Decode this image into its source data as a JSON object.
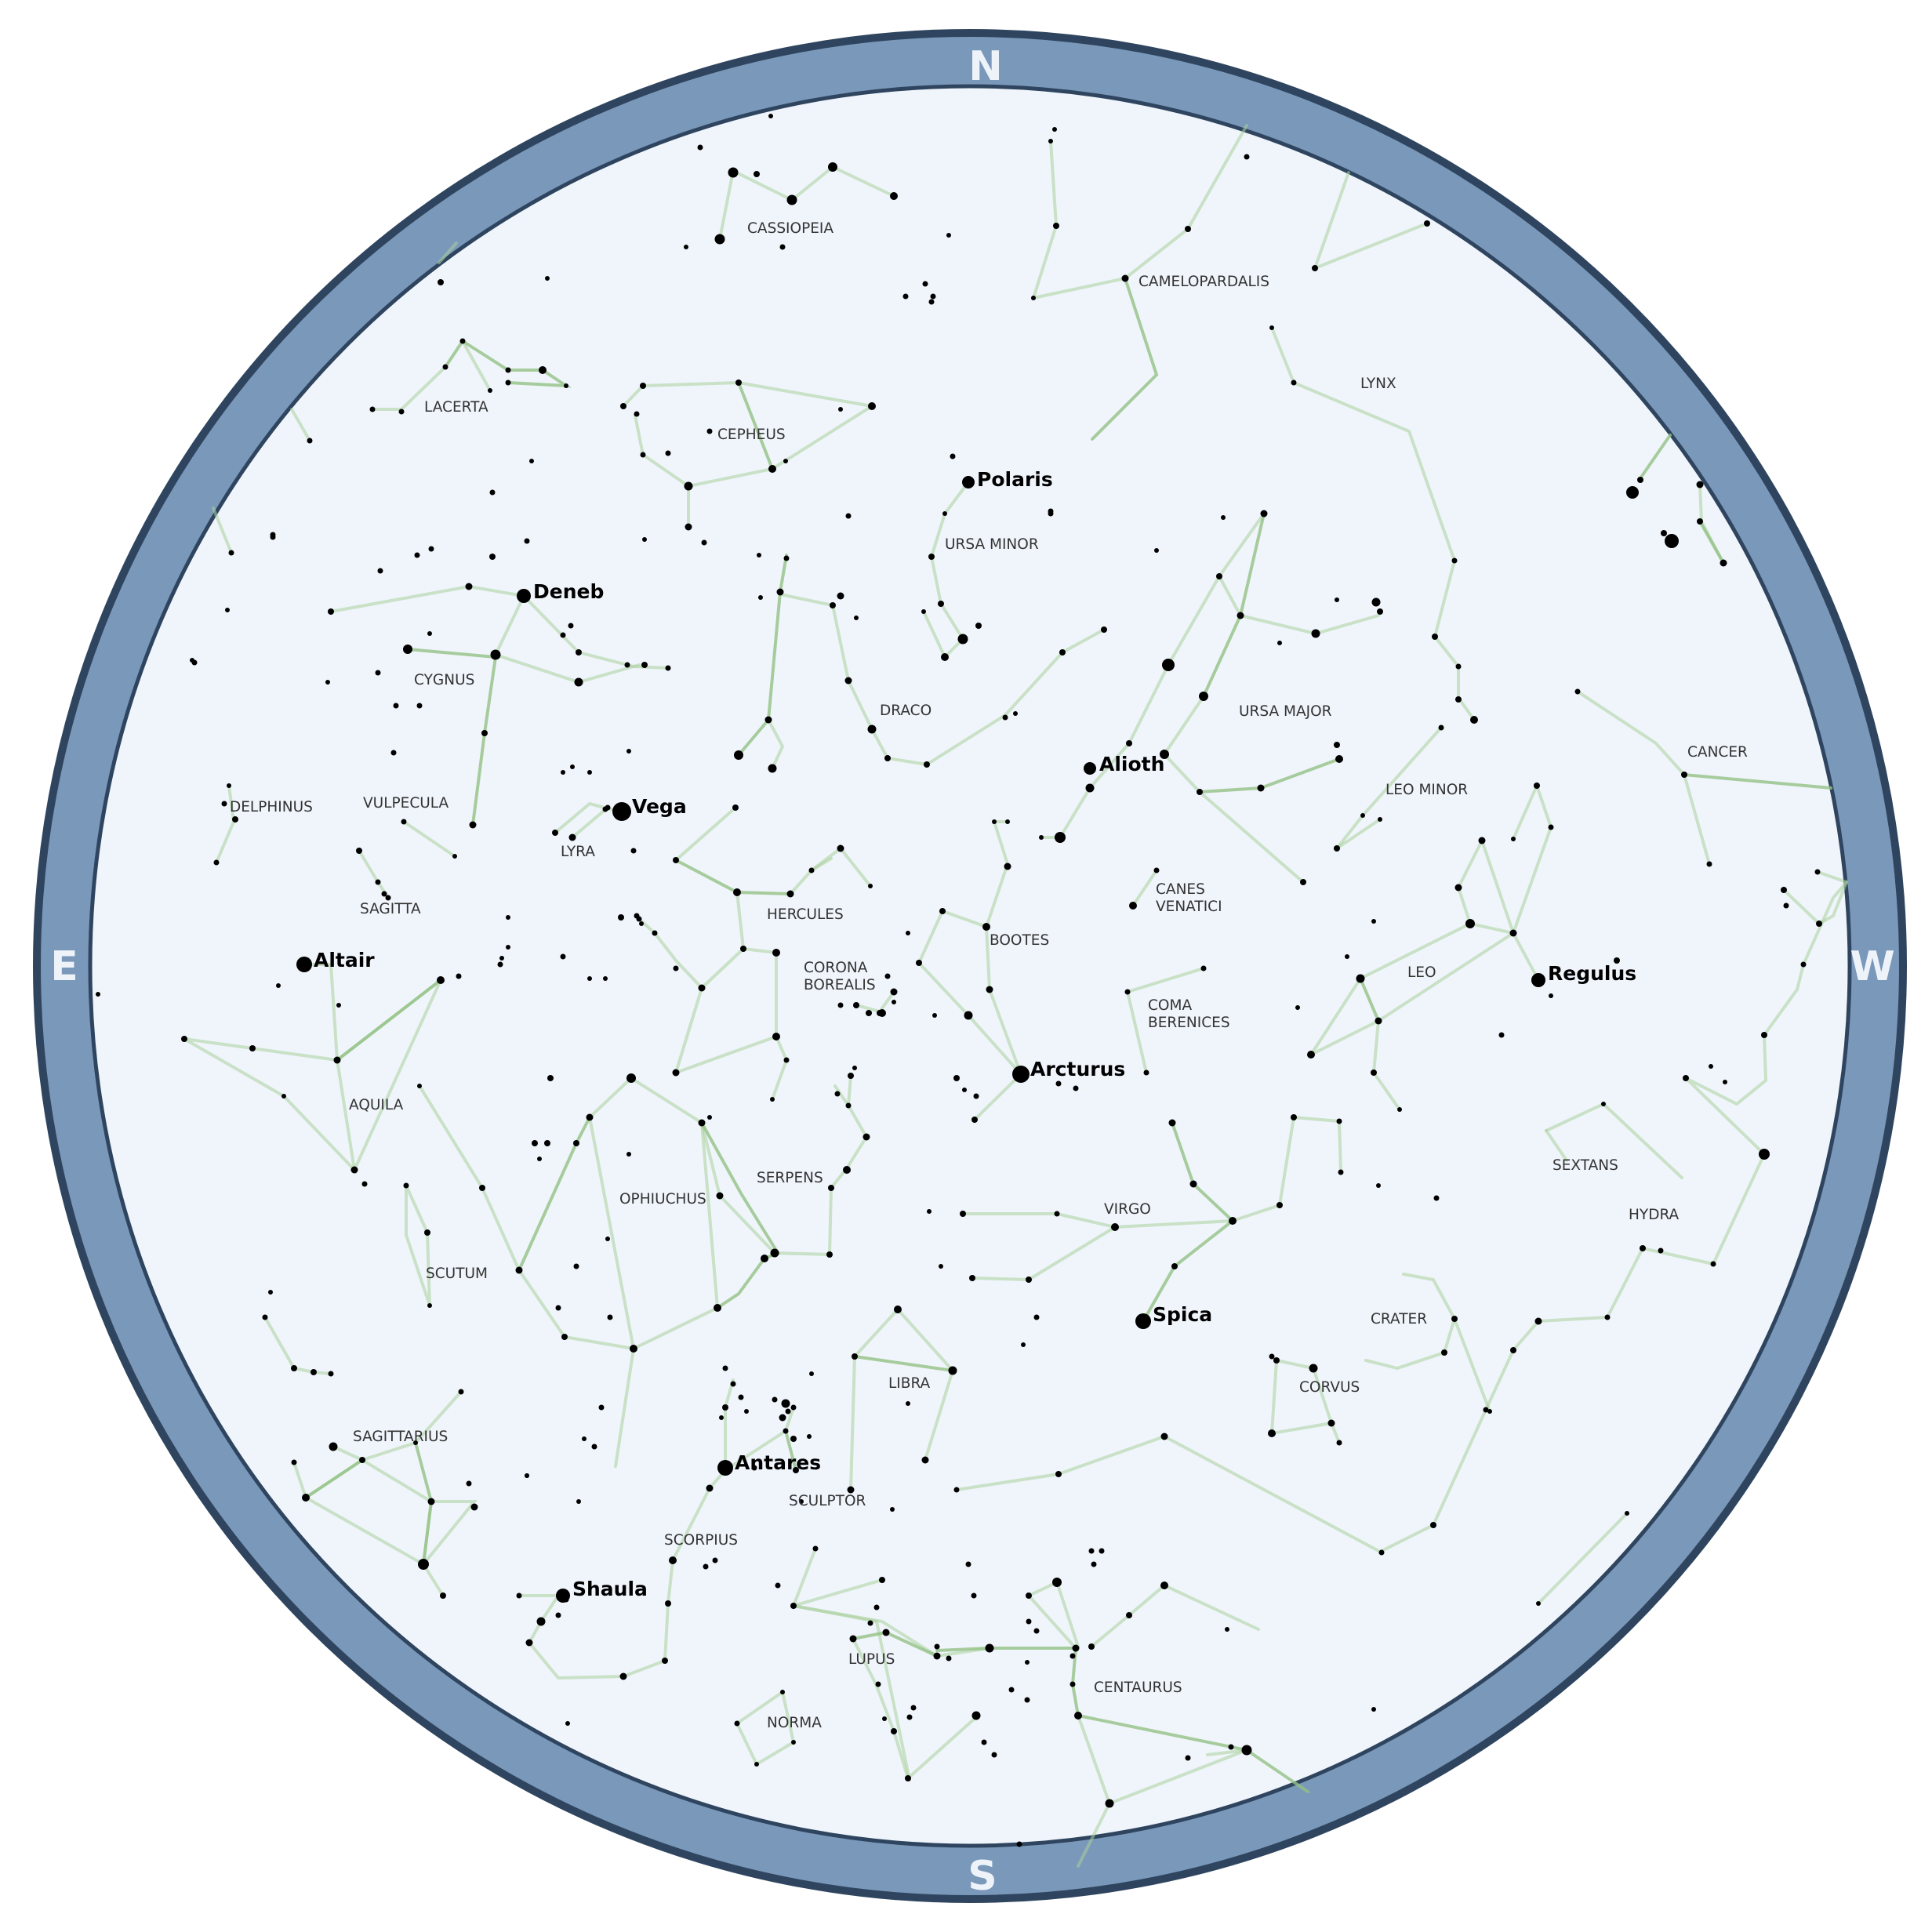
{
  "chart": {
    "background": "#f0f5fc",
    "ring_color": "#7a98ba",
    "ring_edge_color": "#2f455f",
    "line_color": "#a9cf9a",
    "star_color": "#000000"
  },
  "cardinals": {
    "north": "N",
    "south": "S",
    "east": "E",
    "west": "W"
  },
  "constellations": [
    "CASSIOPEIA",
    "CAMELOPARDALIS",
    "LACERTA",
    "CEPHEUS",
    "LYNX",
    "URSA MINOR",
    "CYGNUS",
    "DRACO",
    "URSA MAJOR",
    "CANCER",
    "DELPHINUS",
    "VULPECULA",
    "LEO MINOR",
    "LYRA",
    "CANES",
    "VENATICI",
    "SAGITTA",
    "HERCULES",
    "BOOTES",
    "CORONA",
    "BOREALIS",
    "LEO",
    "COMA",
    "BERENICES",
    "AQUILA",
    "SEXTANS",
    "SERPENS",
    "VIRGO",
    "OPHIUCHUS",
    "HYDRA",
    "SCUTUM",
    "CRATER",
    "LIBRA",
    "CORVUS",
    "SAGITTARIUS",
    "SCULPTOR",
    "SCORPIUS",
    "LUPUS",
    "CENTAURUS",
    "NORMA"
  ],
  "stars": [
    "Polaris",
    "Deneb",
    "Alioth",
    "Vega",
    "Altair",
    "Regulus",
    "Arcturus",
    "Spica",
    "Antares",
    "Shaula"
  ]
}
